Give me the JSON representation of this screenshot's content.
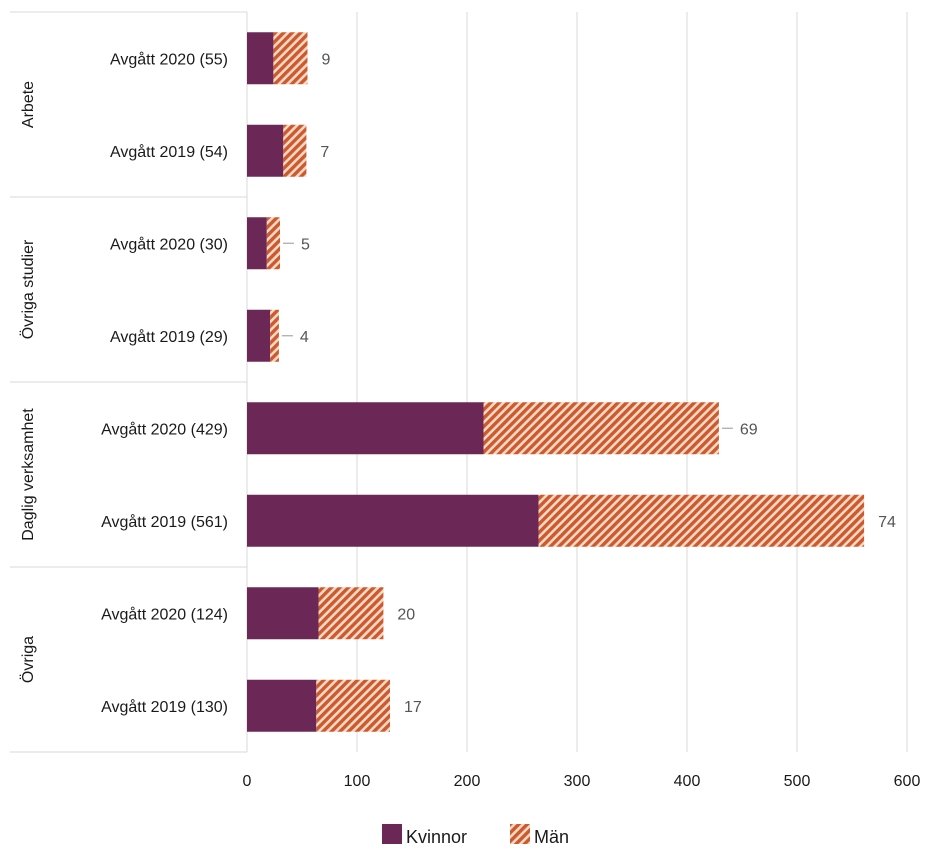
{
  "chart_data": {
    "type": "bar",
    "orientation": "horizontal",
    "stacked": true,
    "groups": [
      "Arbete",
      "Övriga studier",
      "Daglig verksamhet",
      "Övriga"
    ],
    "rows": [
      {
        "group": "Arbete",
        "label": "Avgått 2020 (55)",
        "women": 24,
        "men": 31,
        "annotation": "9",
        "leader": false
      },
      {
        "group": "Arbete",
        "label": "Avgått 2019 (54)",
        "women": 33,
        "men": 21,
        "annotation": "7",
        "leader": false
      },
      {
        "group": "Övriga studier",
        "label": "Avgått 2020 (30)",
        "women": 18,
        "men": 12,
        "annotation": "5",
        "leader": true
      },
      {
        "group": "Övriga studier",
        "label": "Avgått 2019 (29)",
        "women": 21,
        "men": 8,
        "annotation": "4",
        "leader": true
      },
      {
        "group": "Daglig verksamhet",
        "label": "Avgått 2020 (429)",
        "women": 215,
        "men": 214,
        "annotation": "69",
        "leader": true
      },
      {
        "group": "Daglig verksamhet",
        "label": "Avgått 2019 (561)",
        "women": 265,
        "men": 296,
        "annotation": "74",
        "leader": false
      },
      {
        "group": "Övriga",
        "label": "Avgått 2020 (124)",
        "women": 65,
        "men": 59,
        "annotation": "20",
        "leader": false
      },
      {
        "group": "Övriga",
        "label": "Avgått 2019 (130)",
        "women": 63,
        "men": 67,
        "annotation": "17",
        "leader": false
      }
    ],
    "series": [
      {
        "name": "Kvinnor",
        "key": "women",
        "color": "#6b2856"
      },
      {
        "name": "Män",
        "key": "men",
        "color": "#cc5a2c",
        "pattern": "diagonal-hatch"
      }
    ],
    "xlim": [
      0,
      600
    ],
    "xticks": [
      "0",
      "100",
      "200",
      "300",
      "400",
      "500",
      "600"
    ],
    "grid": true,
    "legend_position": "bottom"
  }
}
